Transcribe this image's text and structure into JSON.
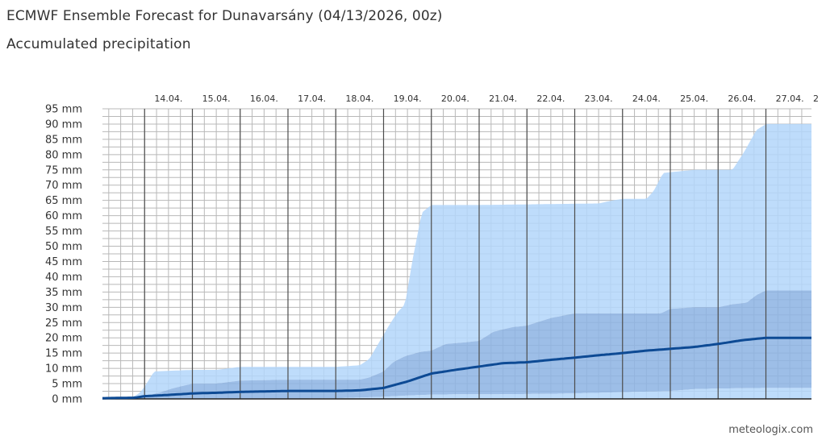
{
  "header": {
    "title": "ECMWF Ensemble Forecast for Dunavarsány (04/13/2026, 00z)",
    "subtitle": "Accumulated precipitation"
  },
  "footer": {
    "credit": "meteologix.com"
  },
  "colors": {
    "max_band": "#b3d6fa",
    "inner_band": "#8cb3e3",
    "median_line": "#0d4a94",
    "minor_grid": "#b8b8b8",
    "major_grid": "#4d4d4d"
  },
  "chart_data": {
    "type": "area",
    "title": "Accumulated precipitation",
    "ylim": [
      0,
      95
    ],
    "y_ticks": [
      "0 mm",
      "5 mm",
      "10 mm",
      "15 mm",
      "20 mm",
      "25 mm",
      "30 mm",
      "35 mm",
      "40 mm",
      "45 mm",
      "50 mm",
      "55 mm",
      "60 mm",
      "65 mm",
      "70 mm",
      "75 mm",
      "80 mm",
      "85 mm",
      "90 mm",
      "95 mm"
    ],
    "x_ticks": [
      "14.04.",
      "15.04.",
      "16.04.",
      "17.04.",
      "18.04.",
      "19.04.",
      "20.04.",
      "21.04.",
      "22.04.",
      "23.04.",
      "24.04.",
      "25.04.",
      "26.04.",
      "27.04.",
      "2"
    ],
    "x_unit": "days since 13.04. 00z",
    "series": [
      {
        "name": "",
        "role": "max",
        "x": [
          0,
          0.75,
          0.9,
          1.0,
          1.2,
          2,
          2.5,
          3,
          4,
          5,
          5.5,
          5.7,
          5.85,
          6,
          6.15,
          6.3,
          6.45,
          6.6,
          6.8,
          7,
          7.2,
          8,
          10.5,
          10.8,
          11,
          11.5,
          11.65,
          11.85,
          12.5,
          13,
          13.3,
          13.55,
          13.8,
          14
        ],
        "values": [
          0.3,
          0.5,
          2,
          4,
          9,
          9.5,
          9.5,
          10.5,
          10.5,
          10.5,
          11,
          13,
          17,
          21,
          25,
          28.5,
          31,
          45,
          61,
          63.5,
          63.5,
          63.5,
          64,
          65,
          65.5,
          65.5,
          68,
          74,
          75,
          75,
          75,
          81,
          88,
          90
        ]
      },
      {
        "name": "",
        "role": "p75",
        "x": [
          0,
          0.8,
          1,
          1.3,
          1.6,
          2,
          2.5,
          3,
          4,
          5,
          5.5,
          5.7,
          6,
          6.2,
          6.45,
          6.8,
          7,
          7.3,
          7.7,
          8,
          8.3,
          8.7,
          9,
          9.5,
          10,
          10.5,
          11,
          11.5,
          11.8,
          12,
          12.5,
          13,
          13.3,
          13.6,
          13.8,
          14
        ],
        "values": [
          0.3,
          0.5,
          1,
          2,
          3.5,
          5,
          5,
          6,
          6.3,
          6.3,
          6.3,
          7,
          9,
          12,
          14,
          15.5,
          15.8,
          18,
          18.5,
          19,
          22,
          23.5,
          24,
          26.5,
          28,
          28,
          28,
          28,
          28,
          29.5,
          30,
          30,
          31,
          31.5,
          34,
          35.5
        ]
      },
      {
        "name": "",
        "role": "median",
        "x": [
          0,
          0.8,
          1,
          1.5,
          2,
          2.5,
          3,
          4,
          5,
          5.5,
          6,
          6.5,
          7,
          7.5,
          8,
          8.5,
          9,
          9.5,
          10,
          10.5,
          11,
          11.5,
          12,
          12.5,
          13,
          13.5,
          14
        ],
        "values": [
          0.2,
          0.4,
          0.9,
          1.3,
          1.8,
          2,
          2.3,
          2.6,
          2.6,
          2.8,
          3.6,
          5.7,
          8.3,
          9.5,
          10.6,
          11.7,
          12,
          12.8,
          13.5,
          14.3,
          15,
          15.8,
          16.4,
          17,
          18,
          19.2,
          20
        ]
      },
      {
        "name": "",
        "role": "p25",
        "x": [
          0,
          3,
          5,
          6,
          6.5,
          7,
          7.5,
          8,
          9,
          10,
          10.5,
          11,
          11.5,
          12,
          12.5,
          13,
          14
        ],
        "values": [
          0,
          0,
          0.2,
          0.7,
          1.1,
          1.4,
          1.5,
          1.5,
          1.6,
          1.8,
          2,
          2.2,
          2.4,
          2.6,
          3.2,
          3.4,
          3.6
        ]
      },
      {
        "name": "",
        "role": "min",
        "x": [
          0,
          14
        ],
        "values": [
          0,
          0
        ]
      }
    ],
    "grid": true,
    "legend": "none"
  }
}
